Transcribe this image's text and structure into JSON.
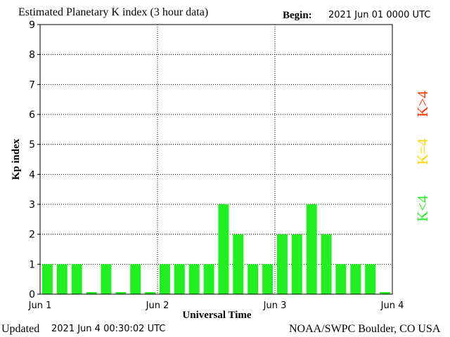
{
  "header": {
    "title": "Estimated Planetary K index (3 hour data)",
    "begin_label": "Begin:",
    "begin_value": "2021 Jun 01 0000 UTC"
  },
  "footer": {
    "updated_label": "Updated",
    "updated_value": "2021 Jun  4 00:30:02 UTC",
    "source": "NOAA/SWPC Boulder, CO USA"
  },
  "legend": {
    "items": [
      {
        "label": "K<4",
        "color": "#22ee22"
      },
      {
        "label": "K=4",
        "color": "#ffd700"
      },
      {
        "label": "K>4",
        "color": "#ff3300"
      }
    ]
  },
  "chart_data": {
    "type": "bar",
    "title": "Estimated Planetary K index (3 hour data)",
    "xlabel": "Universal Time",
    "ylabel": "Kp index",
    "ylim": [
      0,
      9
    ],
    "yticks": [
      "0",
      "1",
      "2",
      "3",
      "4",
      "5",
      "6",
      "7",
      "8",
      "9"
    ],
    "xticks": [
      "Jun 1",
      "Jun 2",
      "Jun 3",
      "Jun 4"
    ],
    "grid": "dotted",
    "bar_color": "#22ee22",
    "values": [
      1,
      1,
      1,
      0,
      1,
      0,
      1,
      0,
      1,
      1,
      1,
      1,
      3,
      2,
      1,
      1,
      2,
      2,
      3,
      2,
      1,
      1,
      1,
      0
    ]
  }
}
